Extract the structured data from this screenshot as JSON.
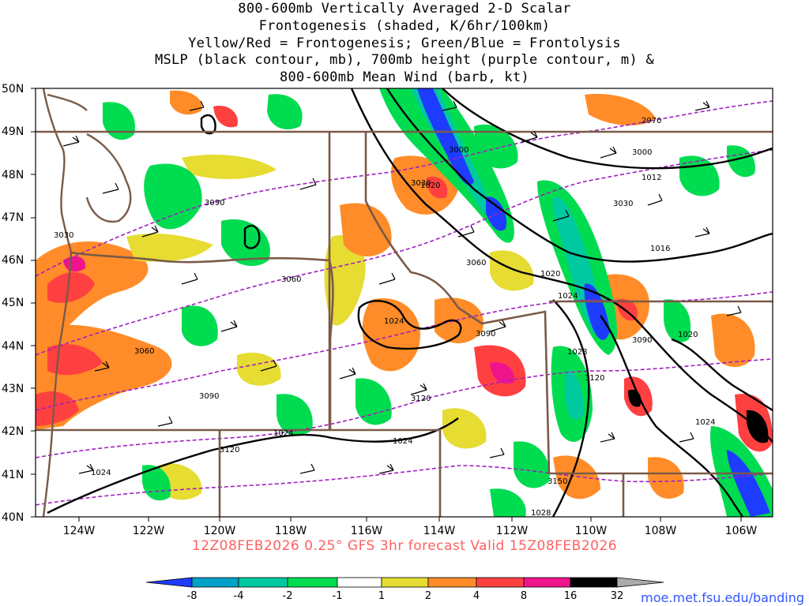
{
  "title_lines": [
    "800-600mb Vertically Averaged 2-D Scalar",
    "Frontogenesis (shaded, K/6hr/100km)",
    "Yellow/Red = Frontogenesis;  Green/Blue = Frontolysis",
    "MSLP (black contour, mb), 700mb height (purple contour, m) &",
    "800-600mb Mean Wind (barb, kt)"
  ],
  "subtitle": "12Z08FEB2026 0.25° GFS 3hr forecast Valid 15Z08FEB2026",
  "url": "moe.met.fsu.edu/banding",
  "lat_labels": [
    "50N",
    "49N",
    "48N",
    "47N",
    "46N",
    "45N",
    "44N",
    "43N",
    "42N",
    "41N",
    "40N"
  ],
  "lon_labels": [
    "124W",
    "122W",
    "120W",
    "118W",
    "116W",
    "114W",
    "112W",
    "110W",
    "108W",
    "106W"
  ],
  "colorbar": {
    "labels": [
      "-8",
      "-4",
      "-2",
      "-1",
      "1",
      "2",
      "4",
      "8",
      "16",
      "32"
    ],
    "colors": [
      "#1e3cff",
      "#00a0c8",
      "#00c8a0",
      "#00dc50",
      "#ffffff",
      "#e6dc32",
      "#ff8c28",
      "#ff4040",
      "#f0148c",
      "#000000",
      "#aaaaaa"
    ]
  },
  "height_labels": [
    "2970",
    "3000",
    "3000",
    "3030",
    "3030",
    "3060",
    "3060",
    "3060",
    "3090",
    "3090",
    "3090",
    "3090",
    "3120",
    "3120",
    "3120",
    "3150",
    "3090",
    "3030"
  ],
  "mslp_labels": [
    "1012",
    "1016",
    "1020",
    "1020",
    "1024",
    "1024",
    "1024",
    "1024",
    "1024",
    "1028",
    "1028",
    "1024",
    "1020"
  ],
  "colors": {
    "state_border": "#7a5a48",
    "height_contour": "#a020c0",
    "mslp_contour": "#000000",
    "subtitle": "#ff6060",
    "url": "#3355ff"
  }
}
